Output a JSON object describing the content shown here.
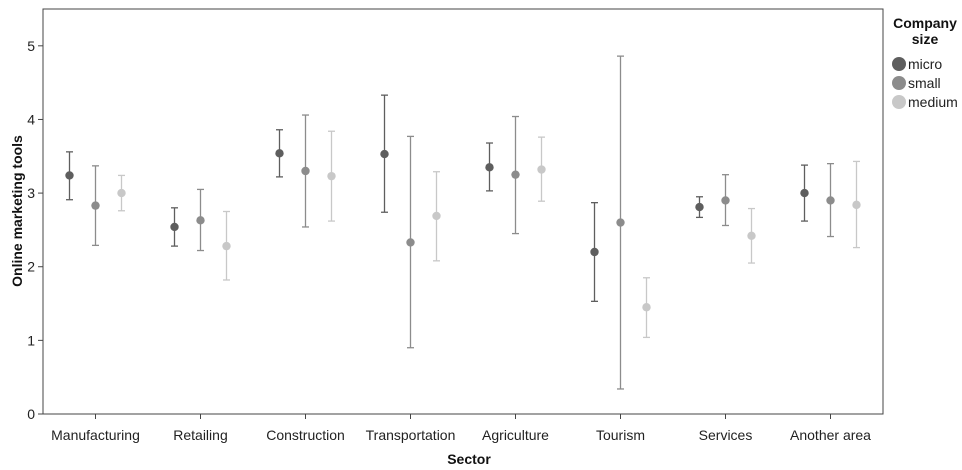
{
  "chart_data": {
    "type": "scatter",
    "xlabel": "Sector",
    "ylabel": "Online marketing tools",
    "ylim": [
      0,
      5.5
    ],
    "yticks": [
      "0",
      "1",
      "2",
      "3",
      "4",
      "5"
    ],
    "grid": false,
    "legend": {
      "title": "Company size",
      "title_lines": [
        "Company",
        "size"
      ],
      "position": "right"
    },
    "categories": [
      "Manufacturing",
      "Retailing",
      "Construction",
      "Transportation",
      "Agriculture",
      "Tourism",
      "Services",
      "Another area"
    ],
    "series": [
      {
        "name": "micro",
        "color": "#5e5e5e",
        "mean": [
          3.24,
          2.54,
          3.54,
          3.53,
          3.35,
          2.2,
          2.81,
          3.0
        ],
        "lower": [
          2.91,
          2.28,
          3.22,
          2.74,
          3.03,
          1.53,
          2.67,
          2.62
        ],
        "upper": [
          3.56,
          2.8,
          3.86,
          4.33,
          3.68,
          2.87,
          2.95,
          3.38
        ]
      },
      {
        "name": "small",
        "color": "#8c8c8c",
        "mean": [
          2.83,
          2.63,
          3.3,
          2.33,
          3.25,
          2.6,
          2.9,
          2.9
        ],
        "lower": [
          2.29,
          2.22,
          2.54,
          0.9,
          2.45,
          0.34,
          2.56,
          2.41
        ],
        "upper": [
          3.37,
          3.05,
          4.06,
          3.77,
          4.04,
          4.86,
          3.25,
          3.4
        ]
      },
      {
        "name": "medium",
        "color": "#c8c8c8",
        "mean": [
          3.0,
          2.28,
          3.23,
          2.69,
          3.32,
          1.45,
          2.42,
          2.84
        ],
        "lower": [
          2.76,
          1.82,
          2.62,
          2.08,
          2.89,
          1.04,
          2.05,
          2.26
        ],
        "upper": [
          3.24,
          2.75,
          3.84,
          3.29,
          3.76,
          1.85,
          2.79,
          3.43
        ]
      }
    ]
  }
}
